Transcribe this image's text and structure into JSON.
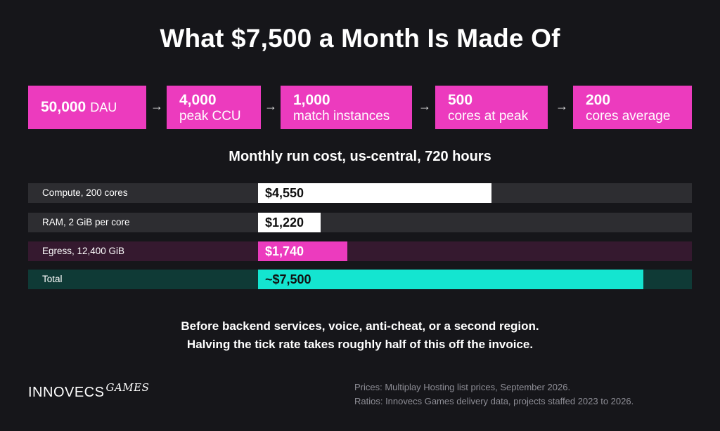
{
  "title": "What $7,500 a Month Is Made Of",
  "flow": [
    {
      "num": "50,000",
      "unit": "DAU"
    },
    {
      "num": "4,000",
      "unit": "peak CCU"
    },
    {
      "num": "1,000",
      "unit": "match instances"
    },
    {
      "num": "500",
      "unit": "cores at peak"
    },
    {
      "num": "200",
      "unit": "cores average"
    }
  ],
  "arrow_glyph": "→",
  "colors": {
    "background": "#16161a",
    "magenta": "#ec3bbe",
    "cyan": "#14e5d0",
    "white": "#ffffff"
  },
  "chart_data": {
    "type": "bar",
    "orientation": "horizontal",
    "title": "Monthly run cost, us-central, 720 hours",
    "categories": [
      "Compute, 200 cores",
      "RAM, 2 GiB per core",
      "Egress, 12,400 GiB",
      "Total"
    ],
    "values": [
      4550,
      1220,
      1740,
      7500
    ],
    "value_labels": [
      "$4,550",
      "$1,220",
      "$1,740",
      "~$7,500"
    ],
    "bar_colors": [
      "#ffffff",
      "#ffffff",
      "#ec3bbe",
      "#14e5d0"
    ],
    "row_bg_colors": [
      "#2d2d31",
      "#2d2d31",
      "#35192f",
      "#0f3a36"
    ],
    "label_colors": [
      "#111111",
      "#111111",
      "#ffffff",
      "#111111"
    ],
    "xlim": [
      0,
      8450
    ],
    "grid": false,
    "legend": "none"
  },
  "note": {
    "line1": "Before backend services, voice, anti-cheat, or a second region.",
    "line2": "Halving the tick rate takes roughly half of this off the invoice."
  },
  "logo": {
    "brand": "INNOVECS",
    "sub": "GAMES"
  },
  "sources": {
    "line1": "Prices: Multiplay Hosting list prices, September 2026.",
    "line2": "Ratios: Innovecs Games delivery data, projects staffed 2023 to 2026."
  }
}
